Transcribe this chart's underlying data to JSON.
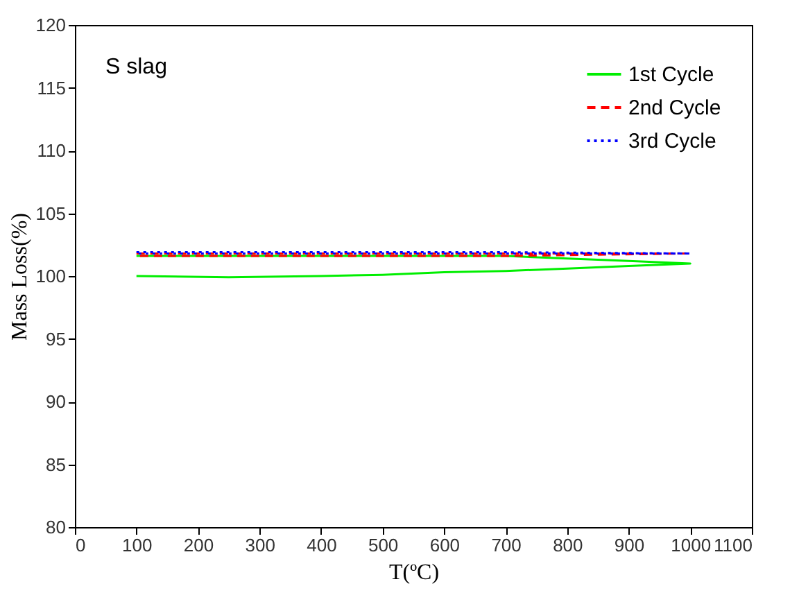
{
  "chart_data": {
    "type": "line",
    "xlabel": "T(ºC)",
    "ylabel": "Mass Loss(%)",
    "annotations": [
      "S slag"
    ],
    "xlim": [
      0,
      1100
    ],
    "xticks": [
      0,
      100,
      200,
      300,
      400,
      500,
      600,
      700,
      800,
      900,
      1000,
      1100
    ],
    "ylim": [
      80,
      120
    ],
    "yticks": [
      80,
      85,
      90,
      95,
      100,
      105,
      110,
      115,
      120
    ],
    "grid": false,
    "legend": "top right",
    "marker": "none",
    "series": [
      {
        "name": "1st Cycle",
        "color": "#00ee00",
        "line_style": "solid",
        "x": [
          100,
          250,
          400,
          500,
          600,
          700,
          800,
          900,
          1000,
          900,
          800,
          700,
          600,
          400,
          100
        ],
        "values": [
          100.0,
          99.9,
          100.0,
          100.1,
          100.3,
          100.4,
          100.6,
          100.8,
          101.0,
          101.2,
          101.4,
          101.6,
          101.6,
          101.6,
          101.6
        ]
      },
      {
        "name": "2nd Cycle",
        "color": "#ff0000",
        "line_style": "dashed",
        "x": [
          100,
          400,
          700,
          1000,
          700,
          400,
          100
        ],
        "values": [
          101.8,
          101.8,
          101.8,
          101.8,
          101.6,
          101.6,
          101.6
        ]
      },
      {
        "name": "3rd Cycle",
        "color": "#0000ff",
        "line_style": "dotted",
        "x": [
          100,
          400,
          700,
          1000,
          700,
          400,
          100
        ],
        "values": [
          101.9,
          101.9,
          101.9,
          101.8,
          101.8,
          101.8,
          101.8
        ]
      }
    ]
  }
}
